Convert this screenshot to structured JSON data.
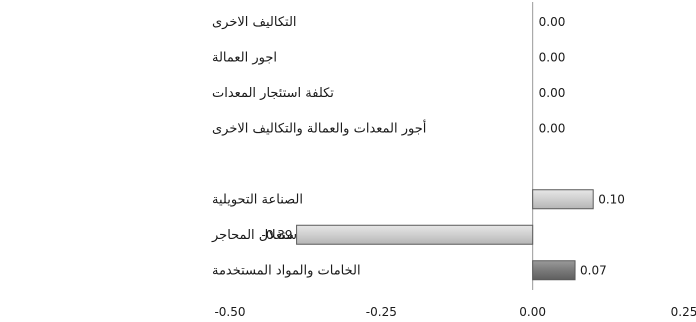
{
  "chart_data": {
    "type": "bar",
    "orientation": "horizontal",
    "categories": [
      "التكاليف الاخرى",
      "اجور العمالة",
      "تكلفة استئجار المعدات",
      "أجور المعدات والعمالة والتكاليف الاخرى",
      "",
      "الصناعة التحويلية",
      "التعدين واستغلال المحاجر",
      "الخامات والمواد المستخدمة"
    ],
    "values": [
      0.0,
      0.0,
      0.0,
      0.0,
      null,
      0.1,
      -0.39,
      0.07
    ],
    "value_labels": [
      "0.00",
      "0.00",
      "0.00",
      "0.00",
      "",
      "0.10",
      "-0.39",
      "0.07"
    ],
    "bar_colors": [
      "#cccccc",
      "#cccccc",
      "#cccccc",
      "#cccccc",
      "#cccccc",
      "#d0d0d0",
      "#bdbdbd",
      "#7a7a7a"
    ],
    "xlim": [
      -0.5,
      0.25
    ],
    "xticks": [
      -0.5,
      -0.25,
      0.0,
      0.25
    ],
    "xtick_labels": [
      "-0.50",
      "-0.25",
      "0.00",
      "0.25"
    ],
    "title": "",
    "xlabel": "",
    "ylabel": "",
    "grid": false,
    "legend": "none"
  }
}
